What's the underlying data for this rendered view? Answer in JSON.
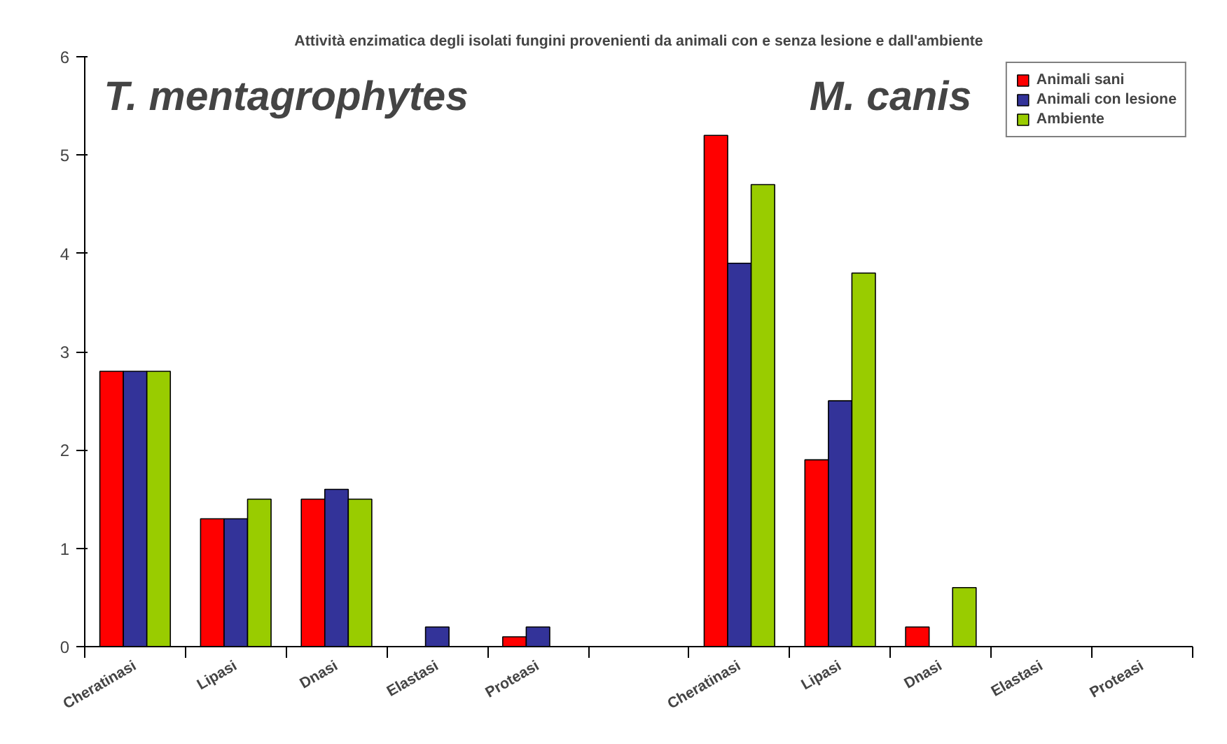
{
  "chart_data": {
    "type": "bar",
    "title": "Attività enzimatica degli isolati fungini provenienti da animali con e senza lesione e dall'ambiente",
    "annotations": [
      "T. mentagrophytes",
      "M. canis"
    ],
    "categories": [
      "Cheratinasi",
      "Lipasi",
      "Dnasi",
      "Elastasi",
      "Proteasi",
      null,
      "Cheratinasi",
      "Lipasi",
      "Dnasi",
      "Elastasi",
      "Proteasi"
    ],
    "series": [
      {
        "name": "Animali sani",
        "color": "#ff0000",
        "values": [
          2.8,
          1.3,
          1.5,
          0,
          0.1,
          null,
          5.2,
          1.9,
          0.2,
          0,
          0
        ]
      },
      {
        "name": "Animali con lesione",
        "color": "#333399",
        "values": [
          2.8,
          1.3,
          1.6,
          0.2,
          0.2,
          null,
          3.9,
          2.5,
          0,
          0,
          0
        ]
      },
      {
        "name": "Ambiente",
        "color": "#99cc00",
        "values": [
          2.8,
          1.5,
          1.5,
          0,
          0,
          null,
          4.7,
          3.8,
          0.6,
          0,
          0
        ]
      }
    ],
    "ylim": [
      0,
      6
    ],
    "yticks": [
      0,
      1,
      2,
      3,
      4,
      5,
      6
    ],
    "grid": false,
    "legend": "top right"
  }
}
